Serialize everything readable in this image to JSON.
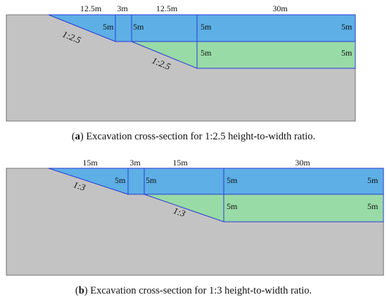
{
  "colors": {
    "ground": "#c4c3c3",
    "outline": "#555555",
    "blue": "#5dafe5",
    "green": "#98dba6",
    "edge": "#2a3bd8"
  },
  "figure_a": {
    "dims": {
      "d1": "12.5m",
      "d2": "3m",
      "d3": "12.5m",
      "d4": "30m"
    },
    "labels": {
      "l1": "5m",
      "l2": "5m",
      "l3": "5m",
      "l4": "5m",
      "l5": "5m",
      "l6": "5m"
    },
    "slopes": {
      "s1": "1:2.5",
      "s2": "1:2.5"
    },
    "caption": {
      "tag": "a",
      "text": " Excavation cross-section for 1:2.5 height-to-width ratio."
    }
  },
  "figure_b": {
    "dims": {
      "d1": "15m",
      "d2": "3m",
      "d3": "15m",
      "d4": "30m"
    },
    "labels": {
      "l1": "5m",
      "l2": "5m",
      "l3": "5m",
      "l4": "5m",
      "l5": "5m",
      "l6": "5m"
    },
    "slopes": {
      "s1": "1:3",
      "s2": "1:3"
    },
    "caption": {
      "tag": "b",
      "text": " Excavation cross-section for 1:3 height-to-width ratio."
    }
  }
}
